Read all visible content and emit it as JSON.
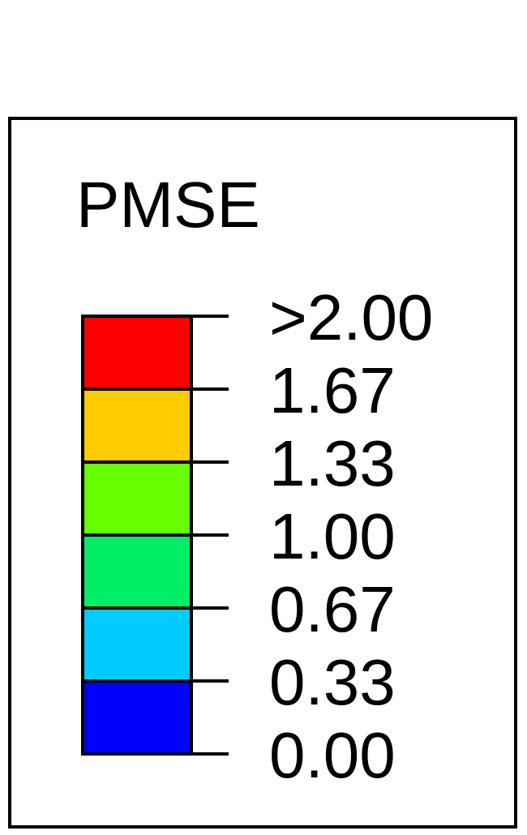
{
  "legend": {
    "title": "PMSE",
    "threshold_labels": [
      ">2.00",
      "1.67",
      "1.33",
      "1.00",
      "0.67",
      "0.33",
      "0.00"
    ],
    "bins": [
      {
        "range": [
          2.0,
          null
        ],
        "color": "#FF0000"
      },
      {
        "range": [
          1.67,
          2.0
        ],
        "color": "#FFCC00"
      },
      {
        "range": [
          1.33,
          1.67
        ],
        "color": "#66FF00"
      },
      {
        "range": [
          1.0,
          1.33
        ],
        "color": "#00EE66"
      },
      {
        "range": [
          0.67,
          1.0
        ],
        "color": "#00CCFF"
      },
      {
        "range": [
          0.33,
          0.67
        ],
        "color": "#0000FF"
      }
    ]
  }
}
